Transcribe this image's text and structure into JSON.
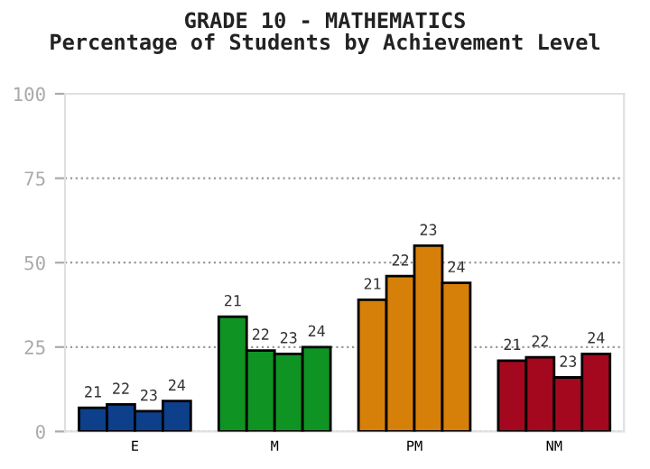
{
  "chart_data": {
    "type": "bar",
    "title": "GRADE 10 - MATHEMATICS\nPercentage of Students by Achievement Level",
    "categories": [
      "E",
      "M",
      "PM",
      "NM"
    ],
    "series": [
      {
        "name": "21",
        "colors": [
          "#0d3f8a",
          "#0f9423",
          "#d6800a",
          "#a3081f"
        ],
        "values": [
          7,
          34,
          39,
          21
        ]
      },
      {
        "name": "22",
        "colors": [
          "#0d3f8a",
          "#0f9423",
          "#d6800a",
          "#a3081f"
        ],
        "values": [
          8,
          24,
          46,
          22
        ]
      },
      {
        "name": "23",
        "colors": [
          "#0d3f8a",
          "#0f9423",
          "#d6800a",
          "#a3081f"
        ],
        "values": [
          6,
          23,
          55,
          16
        ]
      },
      {
        "name": "24",
        "colors": [
          "#0d3f8a",
          "#0f9423",
          "#d6800a",
          "#a3081f"
        ],
        "values": [
          9,
          25,
          44,
          23
        ]
      }
    ],
    "ylim": [
      0,
      100
    ],
    "yticks": [
      0,
      25,
      50,
      75,
      100
    ],
    "grid": "y",
    "legend": false
  }
}
